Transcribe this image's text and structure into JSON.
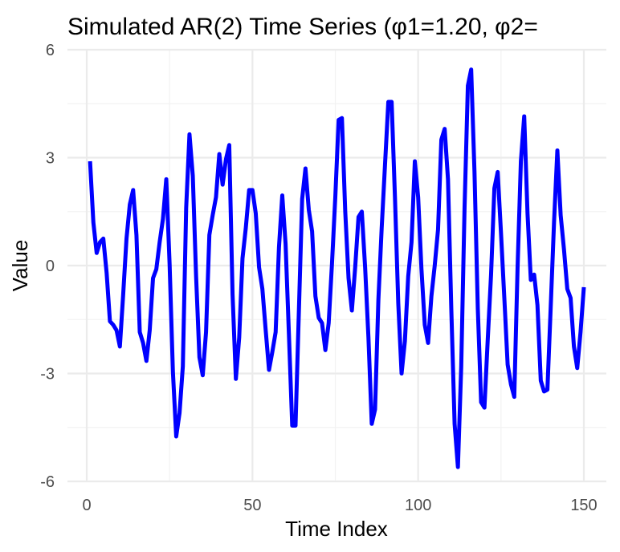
{
  "chart_data": {
    "type": "line",
    "title": "Simulated AR(2) Time Series (φ1=1.20, φ2=",
    "xlabel": "Time Index",
    "ylabel": "Value",
    "xlim": [
      0,
      150
    ],
    "ylim": [
      -6,
      6
    ],
    "x_ticks": [
      0,
      50,
      100,
      150
    ],
    "y_ticks": [
      -6,
      -3,
      0,
      3,
      6
    ],
    "x_tick_labels": [
      "0",
      "50",
      "100",
      "150"
    ],
    "y_tick_labels": [
      "-6",
      "-3",
      "0",
      "3",
      "6"
    ],
    "grid": true,
    "line_color": "#0000ff",
    "x": [
      1,
      2,
      3,
      4,
      5,
      6,
      7,
      8,
      9,
      10,
      11,
      12,
      13,
      14,
      15,
      16,
      17,
      18,
      19,
      20,
      21,
      22,
      23,
      24,
      25,
      26,
      27,
      28,
      29,
      30,
      31,
      32,
      33,
      34,
      35,
      36,
      37,
      38,
      39,
      40,
      41,
      42,
      43,
      44,
      45,
      46,
      47,
      48,
      49,
      50,
      51,
      52,
      53,
      54,
      55,
      56,
      57,
      58,
      59,
      60,
      61,
      62,
      63,
      64,
      65,
      66,
      67,
      68,
      69,
      70,
      71,
      72,
      73,
      74,
      75,
      76,
      77,
      78,
      79,
      80,
      81,
      82,
      83,
      84,
      85,
      86,
      87,
      88,
      89,
      90,
      91,
      92,
      93,
      94,
      95,
      96,
      97,
      98,
      99,
      100,
      101,
      102,
      103,
      104,
      105,
      106,
      107,
      108,
      109,
      110,
      111,
      112,
      113,
      114,
      115,
      116,
      117,
      118,
      119,
      120,
      121,
      122,
      123,
      124,
      125,
      126,
      127,
      128,
      129,
      130,
      131,
      132,
      133,
      134,
      135,
      136,
      137,
      138,
      139,
      140,
      141,
      142,
      143,
      144,
      145,
      146,
      147,
      148,
      149,
      150
    ],
    "y": [
      2.9,
      1.2,
      0.35,
      0.65,
      0.75,
      -0.2,
      -1.55,
      -1.65,
      -1.8,
      -2.25,
      -0.8,
      0.75,
      1.7,
      2.1,
      0.85,
      -1.85,
      -2.15,
      -2.65,
      -1.8,
      -0.35,
      -0.1,
      0.65,
      1.3,
      2.4,
      0.05,
      -2.95,
      -4.75,
      -4.1,
      -2.8,
      1.6,
      3.65,
      2.5,
      -0.3,
      -2.55,
      -3.05,
      -1.85,
      0.85,
      1.4,
      1.9,
      3.1,
      2.25,
      2.95,
      3.35,
      -0.8,
      -3.15,
      -2.0,
      0.2,
      1.05,
      2.1,
      2.1,
      1.45,
      -0.05,
      -0.65,
      -1.8,
      -2.9,
      -2.4,
      -1.85,
      0.5,
      1.95,
      0.6,
      -1.9,
      -4.45,
      -4.45,
      -1.3,
      1.85,
      2.7,
      1.55,
      0.95,
      -0.85,
      -1.45,
      -1.6,
      -2.35,
      -1.6,
      0.05,
      1.9,
      4.05,
      4.1,
      1.5,
      -0.35,
      -1.25,
      -0.05,
      1.35,
      1.5,
      -0.05,
      -2.0,
      -4.4,
      -4.0,
      -0.95,
      1.05,
      2.8,
      4.55,
      4.55,
      1.9,
      -1.05,
      -3.0,
      -2.1,
      -0.3,
      0.65,
      2.9,
      1.9,
      -0.1,
      -1.65,
      -2.15,
      -0.85,
      0.0,
      1.0,
      3.5,
      3.8,
      2.4,
      -1.2,
      -4.4,
      -5.6,
      -2.8,
      1.6,
      5.0,
      5.45,
      2.6,
      -1.2,
      -3.8,
      -3.95,
      -2.05,
      -0.25,
      2.15,
      2.6,
      0.9,
      -0.9,
      -2.75,
      -3.3,
      -3.65,
      -0.05,
      2.9,
      4.15,
      1.45,
      -0.4,
      -0.25,
      -1.1,
      -3.2,
      -3.5,
      -3.45,
      -1.15,
      1.2,
      3.2,
      1.4,
      0.45,
      -0.65,
      -0.9,
      -2.25,
      -2.85,
      -1.85,
      -0.6
    ]
  }
}
